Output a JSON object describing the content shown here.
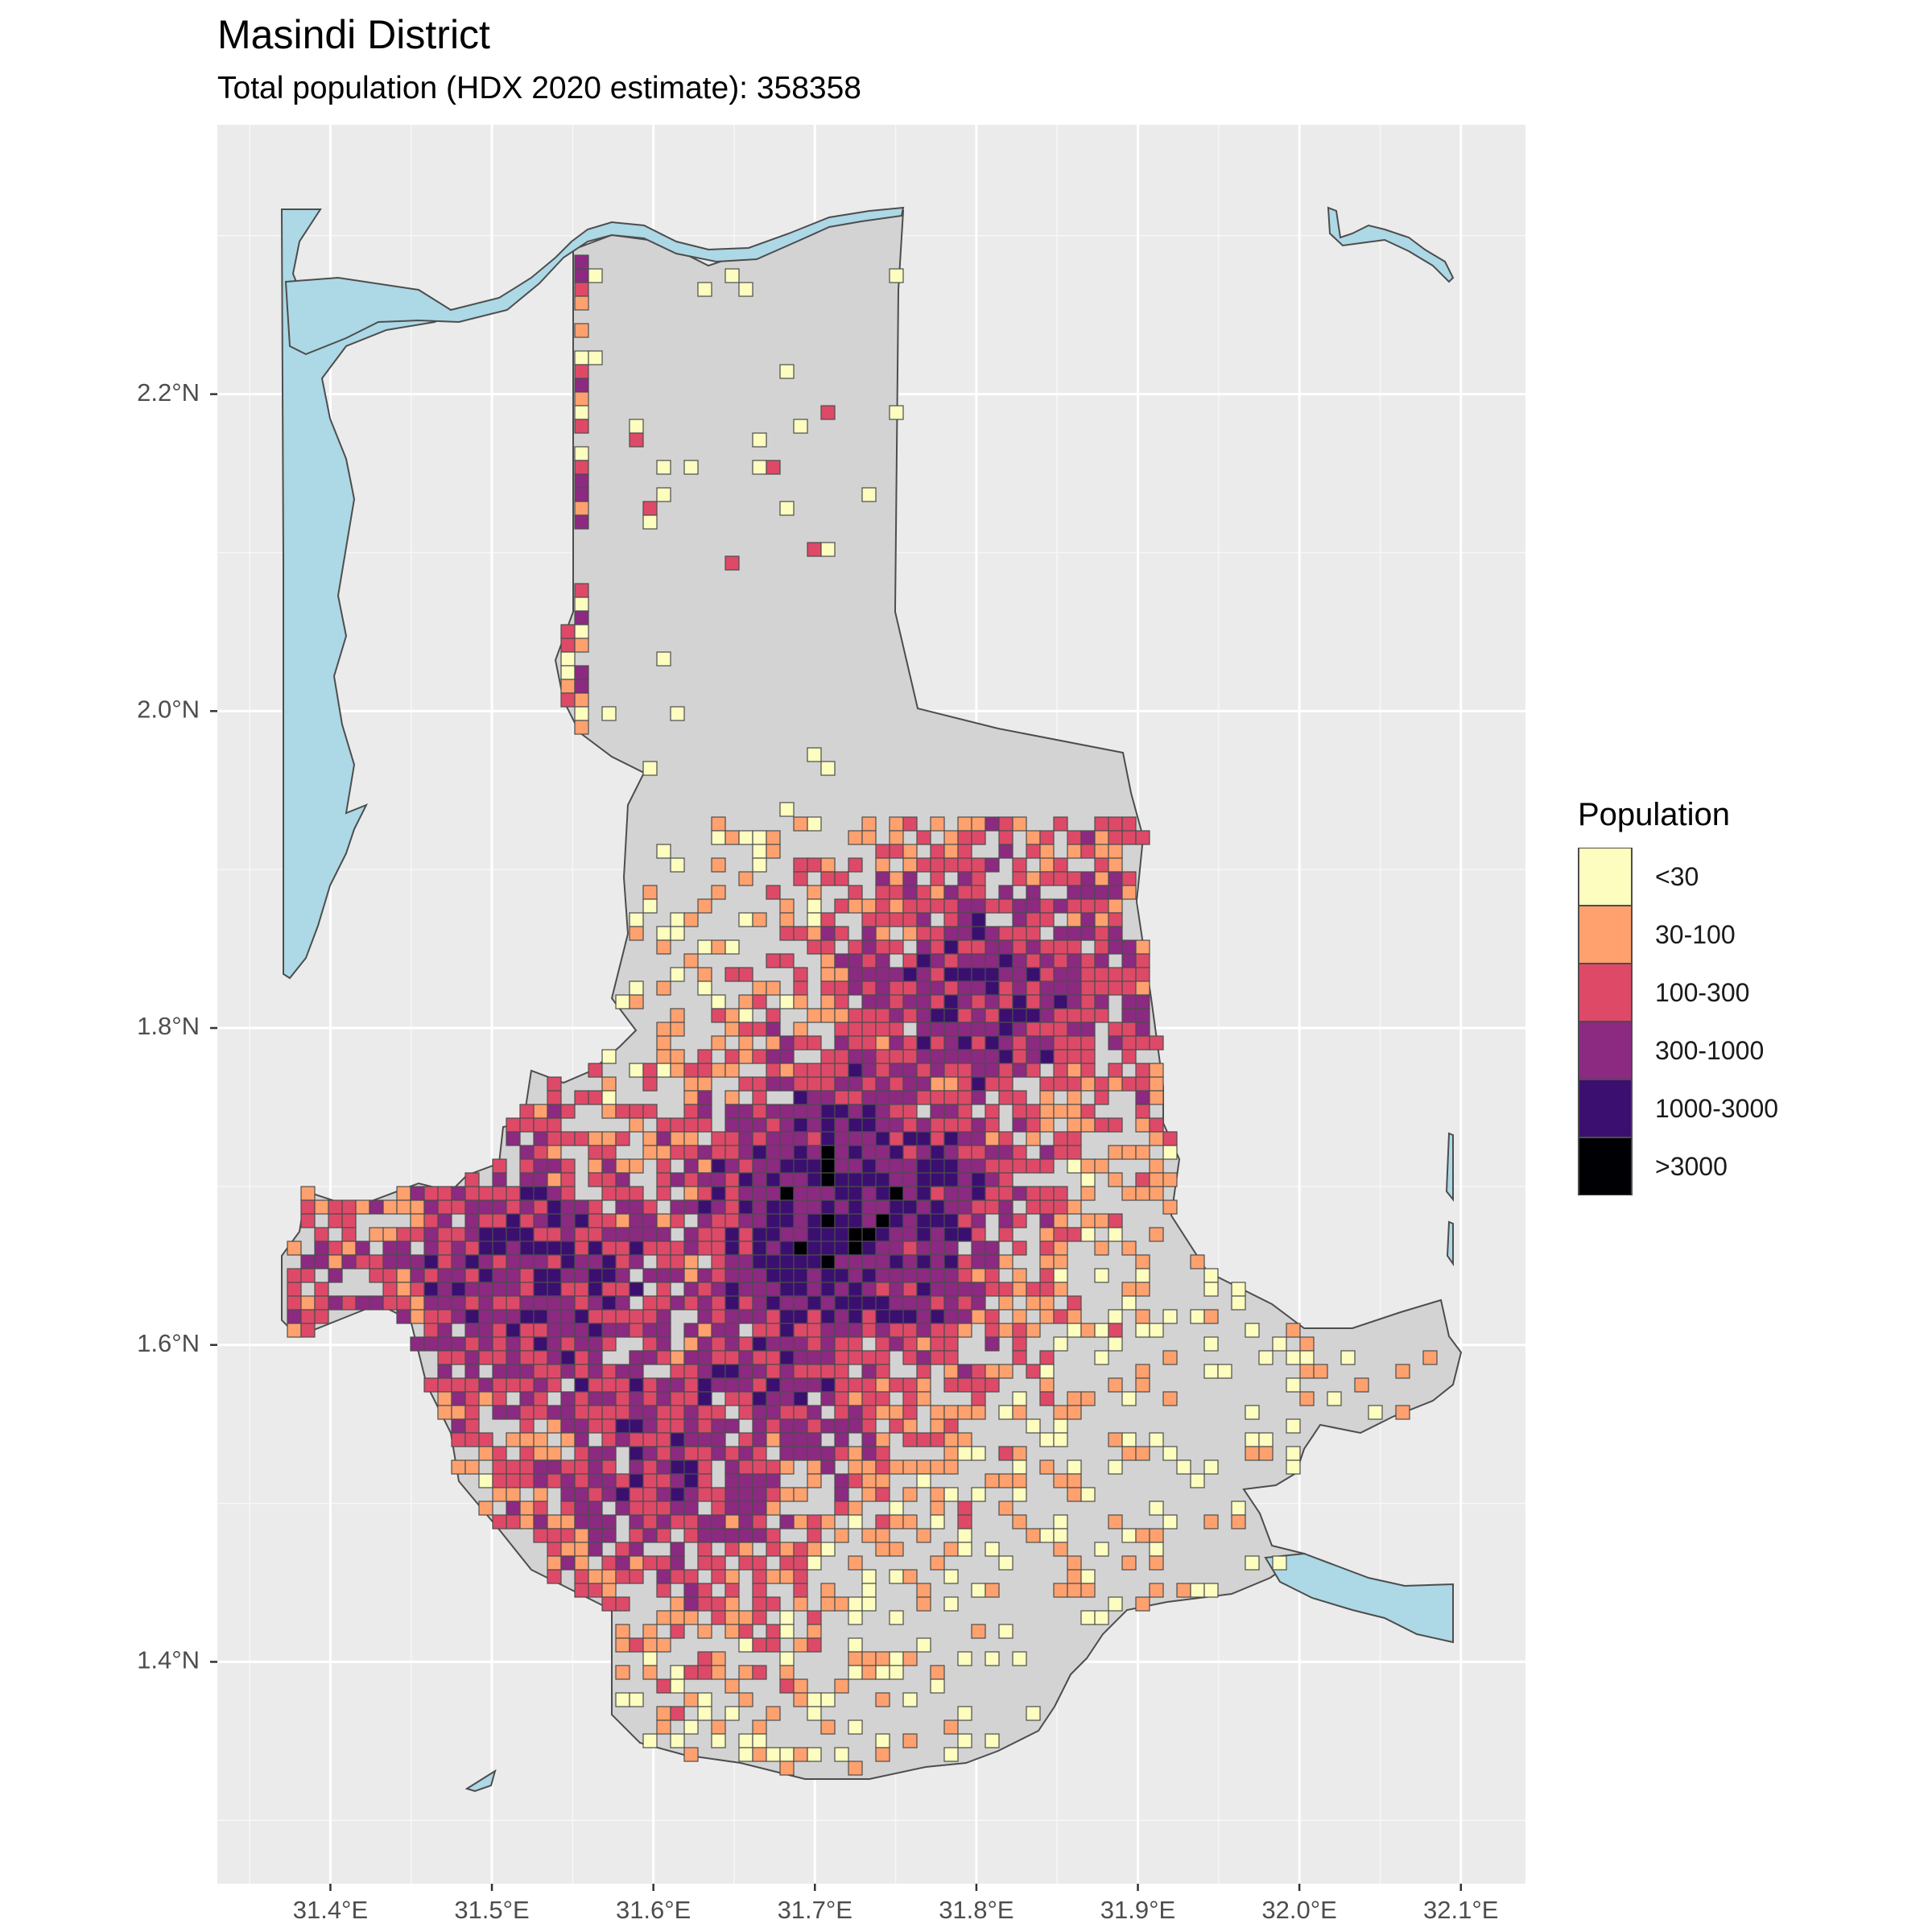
{
  "header": {
    "title": "Masindi District",
    "subtitle": "Total population (HDX 2020 estimate): 358358"
  },
  "axes": {
    "x_ticks": [
      "31.4°E",
      "31.5°E",
      "31.6°E",
      "31.7°E",
      "31.8°E",
      "31.9°E",
      "32.0°E",
      "32.1°E"
    ],
    "y_ticks": [
      "1.4°N",
      "1.6°N",
      "1.8°N",
      "2.0°N",
      "2.2°N"
    ],
    "x_range_deg": [
      31.33,
      32.14
    ],
    "y_range_deg": [
      1.26,
      2.37
    ]
  },
  "legend": {
    "title": "Population",
    "items": [
      {
        "label": "<30",
        "color": "#FCFDBF"
      },
      {
        "label": "30-100",
        "color": "#FEA16E"
      },
      {
        "label": "100-300",
        "color": "#DE4968"
      },
      {
        "label": "300-1000",
        "color": "#8C2981"
      },
      {
        "label": "1000-3000",
        "color": "#3B0F70"
      },
      {
        "label": ">3000",
        "color": "#000004"
      }
    ]
  },
  "colors": {
    "panel_background": "#EBEBEB",
    "gridline": "#FFFFFF",
    "district_fill": "#D3D3D3",
    "water": "#ADD8E6",
    "cell_border": "#4D4D4D"
  }
}
